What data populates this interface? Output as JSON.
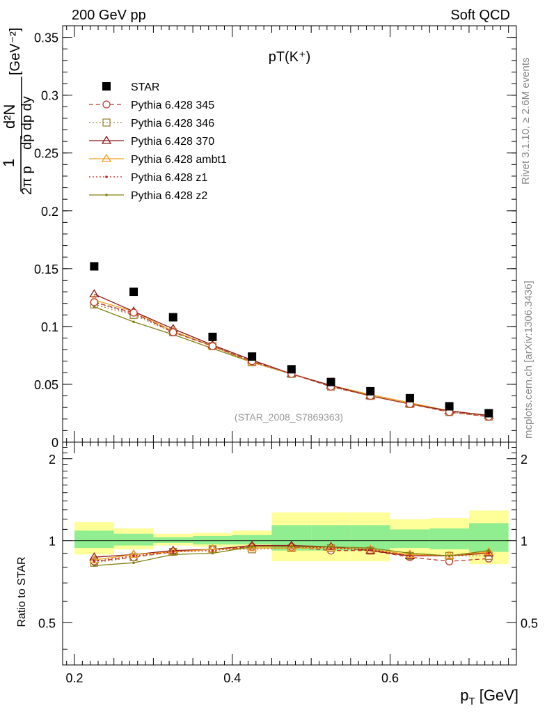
{
  "header": {
    "left": "200 GeV pp",
    "right": "Soft QCD"
  },
  "side_labels": {
    "upper": "Rivet 3.1.10, ≥ 2.6M events",
    "lower": "mcplots.cern.ch [arXiv:1306.3436]"
  },
  "chart_data": [
    {
      "type": "scatter",
      "title": "pT(K⁺)",
      "watermark": "(STAR_2008_S7869363)",
      "xlabel": "p_T [GeV]",
      "ylabel": "1/(2π p_T) d²N/(dp_T dy) [GeV⁻²]",
      "xlim": [
        0.185,
        0.76
      ],
      "ylim": [
        0,
        0.36
      ],
      "y_ticks": [
        "0",
        "0.05",
        "0.1",
        "0.15",
        "0.2",
        "0.25",
        "0.3",
        "0.35"
      ],
      "legend_position": "top-left",
      "x": [
        0.225,
        0.275,
        0.325,
        0.375,
        0.425,
        0.475,
        0.525,
        0.575,
        0.625,
        0.675,
        0.725
      ],
      "series": [
        {
          "name": "STAR",
          "color": "#000000",
          "marker": "square",
          "line": "none",
          "values": [
            0.152,
            0.13,
            0.108,
            0.091,
            0.074,
            0.063,
            0.052,
            0.044,
            0.038,
            0.031,
            0.025
          ]
        },
        {
          "name": "Pythia 6.428 345",
          "color": "#c0392b",
          "marker": "circle",
          "line": "dashed",
          "values": [
            0.121,
            0.112,
            0.095,
            0.083,
            0.07,
            0.059,
            0.048,
            0.04,
            0.033,
            0.026,
            0.022
          ]
        },
        {
          "name": "Pythia 6.428 346",
          "color": "#a0823a",
          "marker": "square-open",
          "line": "dotted",
          "values": [
            0.119,
            0.11,
            0.095,
            0.083,
            0.069,
            0.059,
            0.048,
            0.04,
            0.033,
            0.026,
            0.022
          ]
        },
        {
          "name": "Pythia 6.428 370",
          "color": "#8b1a1a",
          "marker": "triangle-open",
          "line": "solid",
          "values": [
            0.128,
            0.113,
            0.098,
            0.084,
            0.071,
            0.059,
            0.049,
            0.04,
            0.033,
            0.027,
            0.023
          ]
        },
        {
          "name": "Pythia 6.428 ambt1",
          "color": "#f0a020",
          "marker": "triangle-open",
          "line": "solid",
          "values": [
            0.123,
            0.113,
            0.096,
            0.083,
            0.069,
            0.059,
            0.049,
            0.041,
            0.034,
            0.027,
            0.023
          ]
        },
        {
          "name": "Pythia 6.428 z1",
          "color": "#cc2222",
          "marker": "dot",
          "line": "dotted",
          "values": [
            0.121,
            0.111,
            0.096,
            0.083,
            0.07,
            0.059,
            0.049,
            0.041,
            0.033,
            0.027,
            0.023
          ]
        },
        {
          "name": "Pythia 6.428 z2",
          "color": "#808010",
          "marker": "dot",
          "line": "solid",
          "values": [
            0.117,
            0.104,
            0.093,
            0.081,
            0.069,
            0.059,
            0.049,
            0.041,
            0.034,
            0.027,
            0.023
          ]
        }
      ]
    },
    {
      "type": "line",
      "ylabel": "Ratio to STAR",
      "xlabel": "p_T [GeV]",
      "xlim": [
        0.185,
        0.76
      ],
      "ylim": [
        0.35,
        2.3
      ],
      "x_ticks": [
        "0.2",
        "0.4",
        "0.6"
      ],
      "y_ticks": [
        "0.5",
        "1",
        "2"
      ],
      "bin_edges": [
        0.2,
        0.25,
        0.3,
        0.35,
        0.4,
        0.45,
        0.5,
        0.55,
        0.6,
        0.65,
        0.7,
        0.75
      ],
      "band_yellow": [
        [
          0.89,
          1.17
        ],
        [
          0.93,
          1.11
        ],
        [
          0.96,
          1.06
        ],
        [
          0.95,
          1.07
        ],
        [
          0.94,
          1.09
        ],
        [
          0.84,
          1.27
        ],
        [
          0.84,
          1.27
        ],
        [
          0.84,
          1.27
        ],
        [
          0.89,
          1.2
        ],
        [
          0.88,
          1.21
        ],
        [
          0.82,
          1.29
        ]
      ],
      "band_green": [
        [
          0.94,
          1.09
        ],
        [
          0.96,
          1.06
        ],
        [
          0.98,
          1.03
        ],
        [
          0.97,
          1.04
        ],
        [
          0.97,
          1.05
        ],
        [
          0.92,
          1.14
        ],
        [
          0.92,
          1.14
        ],
        [
          0.92,
          1.14
        ],
        [
          0.94,
          1.1
        ],
        [
          0.93,
          1.11
        ],
        [
          0.91,
          1.16
        ]
      ],
      "x": [
        0.225,
        0.275,
        0.325,
        0.375,
        0.425,
        0.475,
        0.525,
        0.575,
        0.625,
        0.675,
        0.725
      ],
      "series": [
        {
          "name": "Pythia 6.428 345",
          "color": "#c0392b",
          "marker": "circle",
          "line": "dashed",
          "values": [
            0.84,
            0.87,
            0.91,
            0.93,
            0.95,
            0.95,
            0.92,
            0.92,
            0.87,
            0.84,
            0.86
          ]
        },
        {
          "name": "Pythia 6.428 346",
          "color": "#a0823a",
          "marker": "square-open",
          "line": "dotted",
          "values": [
            0.83,
            0.87,
            0.91,
            0.93,
            0.93,
            0.94,
            0.94,
            0.92,
            0.88,
            0.88,
            0.88
          ]
        },
        {
          "name": "Pythia 6.428 370",
          "color": "#8b1a1a",
          "marker": "triangle-open",
          "line": "solid",
          "values": [
            0.87,
            0.89,
            0.92,
            0.93,
            0.96,
            0.96,
            0.95,
            0.92,
            0.88,
            0.88,
            0.9
          ]
        },
        {
          "name": "Pythia 6.428 ambt1",
          "color": "#f0a020",
          "marker": "triangle-open",
          "line": "solid",
          "values": [
            0.85,
            0.89,
            0.91,
            0.93,
            0.94,
            0.94,
            0.94,
            0.93,
            0.89,
            0.88,
            0.91
          ]
        },
        {
          "name": "Pythia 6.428 z1",
          "color": "#cc2222",
          "marker": "dot",
          "line": "dotted",
          "values": [
            0.84,
            0.88,
            0.91,
            0.92,
            0.95,
            0.95,
            0.94,
            0.93,
            0.88,
            0.88,
            0.9
          ]
        },
        {
          "name": "Pythia 6.428 z2",
          "color": "#808010",
          "marker": "dot",
          "line": "solid",
          "values": [
            0.81,
            0.83,
            0.89,
            0.9,
            0.95,
            0.95,
            0.95,
            0.94,
            0.9,
            0.88,
            0.92
          ]
        }
      ]
    }
  ]
}
